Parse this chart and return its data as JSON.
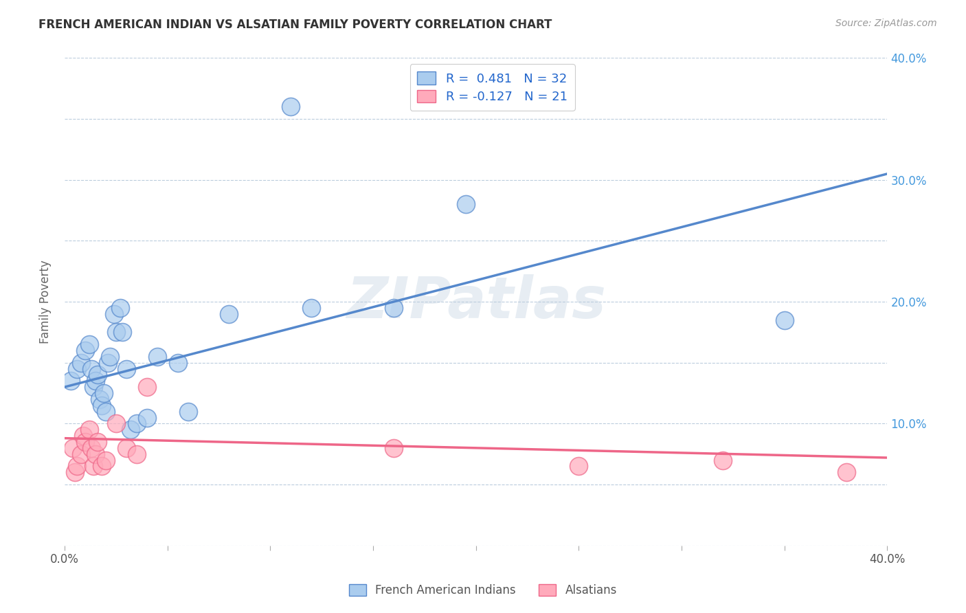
{
  "title": "FRENCH AMERICAN INDIAN VS ALSATIAN FAMILY POVERTY CORRELATION CHART",
  "source": "Source: ZipAtlas.com",
  "ylabel": "Family Poverty",
  "xlim": [
    0.0,
    0.4
  ],
  "ylim": [
    0.0,
    0.4
  ],
  "x_ticks": [
    0.0,
    0.05,
    0.1,
    0.15,
    0.2,
    0.25,
    0.3,
    0.35,
    0.4
  ],
  "y_ticks": [
    0.0,
    0.05,
    0.1,
    0.15,
    0.2,
    0.25,
    0.3,
    0.35,
    0.4
  ],
  "x_tick_labels": [
    "0.0%",
    "",
    "",
    "",
    "",
    "",
    "",
    "",
    "40.0%"
  ],
  "y_tick_labels_right": [
    "",
    "",
    "10.0%",
    "",
    "20.0%",
    "",
    "30.0%",
    "",
    "40.0%"
  ],
  "blue_color": "#5588CC",
  "blue_fill": "#AACCEE",
  "pink_color": "#EE6688",
  "pink_fill": "#FFAABB",
  "watermark": "ZIPatlas",
  "blue_scatter_x": [
    0.003,
    0.006,
    0.008,
    0.01,
    0.012,
    0.013,
    0.014,
    0.015,
    0.016,
    0.017,
    0.018,
    0.019,
    0.02,
    0.021,
    0.022,
    0.024,
    0.025,
    0.027,
    0.028,
    0.03,
    0.032,
    0.035,
    0.04,
    0.045,
    0.055,
    0.06,
    0.08,
    0.11,
    0.12,
    0.16,
    0.195,
    0.35
  ],
  "blue_scatter_y": [
    0.135,
    0.145,
    0.15,
    0.16,
    0.165,
    0.145,
    0.13,
    0.135,
    0.14,
    0.12,
    0.115,
    0.125,
    0.11,
    0.15,
    0.155,
    0.19,
    0.175,
    0.195,
    0.175,
    0.145,
    0.095,
    0.1,
    0.105,
    0.155,
    0.15,
    0.11,
    0.19,
    0.36,
    0.195,
    0.195,
    0.28,
    0.185
  ],
  "pink_scatter_x": [
    0.004,
    0.005,
    0.006,
    0.008,
    0.009,
    0.01,
    0.012,
    0.013,
    0.014,
    0.015,
    0.016,
    0.018,
    0.02,
    0.025,
    0.03,
    0.035,
    0.04,
    0.16,
    0.25,
    0.32,
    0.38
  ],
  "pink_scatter_y": [
    0.08,
    0.06,
    0.065,
    0.075,
    0.09,
    0.085,
    0.095,
    0.08,
    0.065,
    0.075,
    0.085,
    0.065,
    0.07,
    0.1,
    0.08,
    0.075,
    0.13,
    0.08,
    0.065,
    0.07,
    0.06
  ],
  "blue_line_x": [
    0.0,
    0.4
  ],
  "blue_line_y": [
    0.13,
    0.305
  ],
  "pink_line_x": [
    0.0,
    0.4
  ],
  "pink_line_y": [
    0.088,
    0.072
  ],
  "figsize": [
    14.06,
    8.92
  ],
  "dpi": 100
}
